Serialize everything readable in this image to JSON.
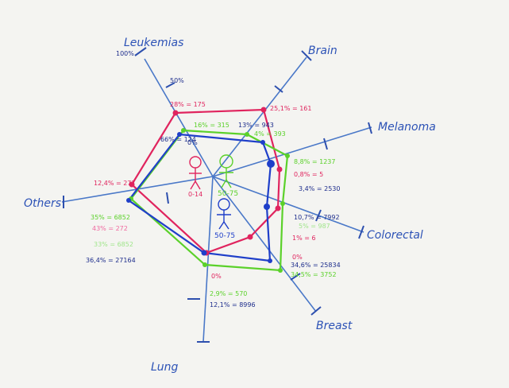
{
  "colors": {
    "axis": "#4a78c8",
    "red_series": "#e0245e",
    "green_series": "#5bd12a",
    "blue_series": "#1f3fc9",
    "pink_text": "#f06aa0",
    "light_green_text": "#9fe58a",
    "dark_text": "#1d2d8c"
  },
  "axes": [
    "Leukemias",
    "Brain",
    "Melanoma",
    "Colorectal",
    "Breast",
    "Lung",
    "Others"
  ],
  "scale_labels": {
    "top": "100%",
    "mid": "50%",
    "center": "0%"
  },
  "legend": {
    "red_age": "0-14",
    "green_age": "50-75",
    "blue_age": "50-75"
  },
  "annotations": {
    "leuk_red": "28% = 175",
    "leuk_green": "16% = 315",
    "leuk_blue": "66% = 124",
    "brain_red": "25,1% = 161",
    "brain_green": "13% = 943",
    "brain_blue": "4% = 393",
    "mel_green": "8,8% = 1237",
    "mel_red": "0,8% = 5",
    "mel_blue": "3,4% = 2530",
    "col_blue": "10,7% = 7992",
    "col_green": "5% = 987",
    "col_red": "1% = 6",
    "breast_red": "0%",
    "breast_blue": "34,6% = 25834",
    "breast_green": "34,5% = 3752",
    "lung_red": "0%",
    "lung_green": "2,9% = 570",
    "lung_blue": "12,1% = 8996",
    "others_red": "12,4% = 277",
    "others_green": "35% = 6852",
    "others_pink": "43% = 272",
    "others_lightgreen": "33% = 6852",
    "others_blue": "36,4% = 27164"
  }
}
